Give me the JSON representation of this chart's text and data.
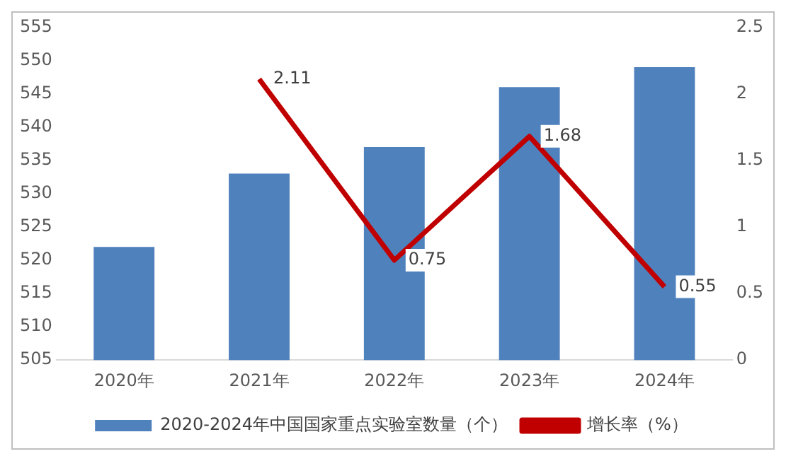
{
  "chart_data": {
    "type": "bar",
    "categories": [
      "2020年",
      "2021年",
      "2022年",
      "2023年",
      "2024年"
    ],
    "series": [
      {
        "name": "2020-2024年中国国家重点实验室数量（个）",
        "color": "#4f81bd",
        "values": [
          522,
          533,
          537,
          546,
          549
        ]
      },
      {
        "name": "增长率（%）",
        "type": "line",
        "axis": "y2",
        "color": "#c00000",
        "values": [
          null,
          2.11,
          0.75,
          1.68,
          0.55
        ],
        "value_labels": [
          null,
          "2.11",
          "0.75",
          "1.68",
          "0.55"
        ]
      }
    ],
    "ylim": [
      505,
      555
    ],
    "yticks": [
      505,
      510,
      515,
      520,
      525,
      530,
      535,
      540,
      545,
      550,
      555
    ],
    "y2lim": [
      0,
      2.5
    ],
    "y2ticks": [
      0,
      0.5,
      1,
      1.5,
      2,
      2.5
    ],
    "grid": false,
    "legend": "bottom",
    "marker": "none",
    "line_style": "solid"
  }
}
